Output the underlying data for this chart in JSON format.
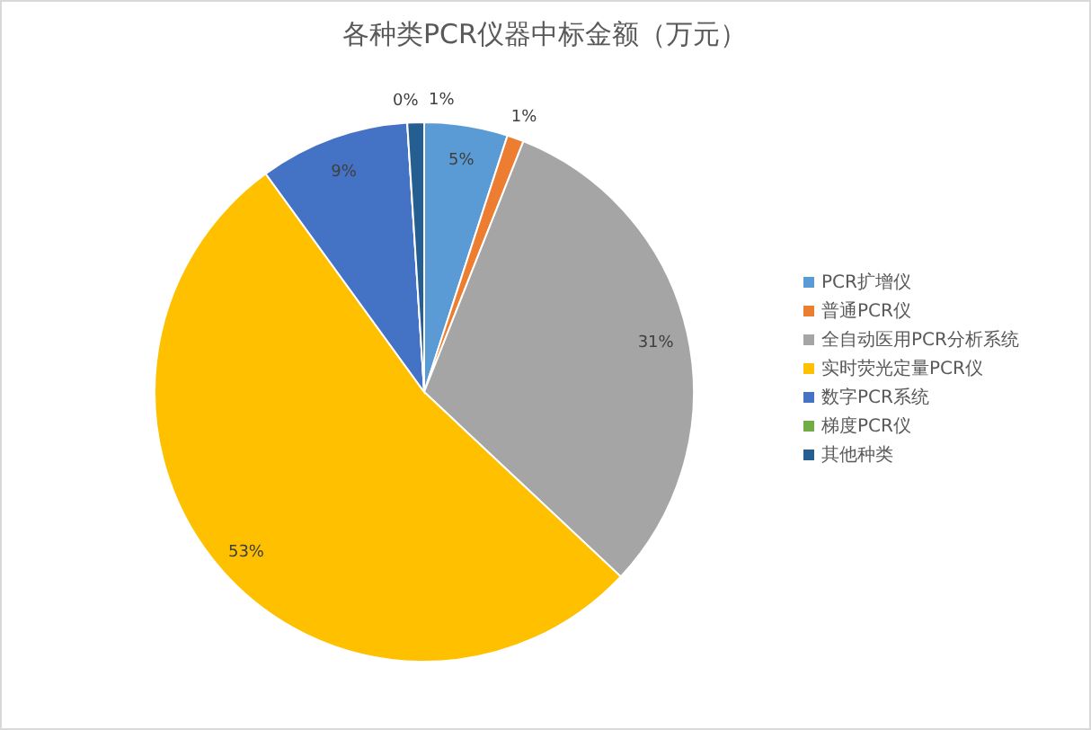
{
  "chart_data": {
    "type": "pie",
    "title": "各种类PCR仪器中标金额（万元）",
    "categories": [
      "PCR扩增仪",
      "普通PCR仪",
      "全自动医用PCR分析系统",
      "实时荧光定量PCR仪",
      "数字PCR系统",
      "梯度PCR仪",
      "其他种类"
    ],
    "values": [
      5,
      1,
      31,
      53,
      9,
      0,
      1
    ],
    "colors": [
      "#5b9bd5",
      "#ed7d31",
      "#a5a5a5",
      "#ffc000",
      "#4472c4",
      "#70ad47",
      "#255e91"
    ],
    "value_labels": [
      "5%",
      "1%",
      "31%",
      "53%",
      "9%",
      "0%",
      "1%"
    ],
    "legend": "right"
  }
}
